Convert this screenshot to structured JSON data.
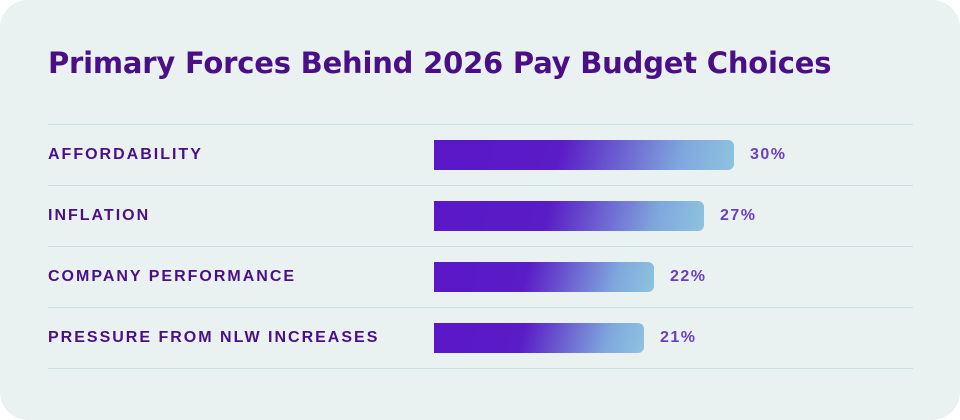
{
  "chart_data": {
    "type": "bar",
    "orientation": "horizontal",
    "title": "Primary Forces Behind 2026 Pay Budget Choices",
    "categories": [
      "AFFORDABILITY",
      "INFLATION",
      "COMPANY PERFORMANCE",
      "PRESSURE FROM NLW INCREASES"
    ],
    "values": [
      30,
      27,
      22,
      21
    ],
    "value_labels": [
      "30%",
      "27%",
      "22%",
      "21%"
    ],
    "unit": "%",
    "xlim": [
      0,
      30
    ],
    "colors": {
      "bar_start": "#5a17c8",
      "bar_end": "#8ec3df",
      "title": "#4a0f86",
      "label": "#4a0f86",
      "value": "#6a3fbf",
      "background": "#e9f2f1",
      "divider": "#c9e0dc"
    },
    "grid": false,
    "legend": "none"
  }
}
